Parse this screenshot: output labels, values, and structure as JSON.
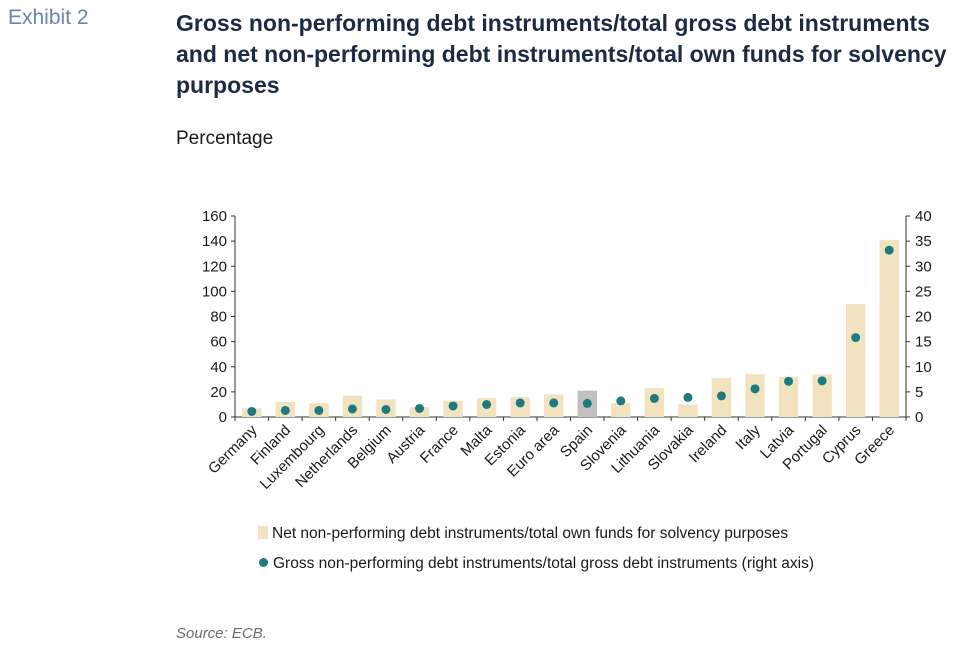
{
  "exhibit_label": "Exhibit 2",
  "title": "Gross non-performing debt instruments/total gross debt instruments and net non-performing debt instruments/total own funds for solvency purposes",
  "unit_label": "Percentage",
  "source": "Source: ECB.",
  "colors": {
    "bar": "#f2e3c0",
    "bar_highlight": "#c0c0c0",
    "dot": "#1f7a7e",
    "title": "#1c2a44",
    "exhibit": "#6a84b0"
  },
  "chart_data": {
    "type": "bar",
    "categories": [
      "Germany",
      "Finland",
      "Luxembourg",
      "Netherlands",
      "Belgium",
      "Austria",
      "France",
      "Malta",
      "Estonia",
      "Euro area",
      "Spain",
      "Slovenia",
      "Lithuania",
      "Slovakia",
      "Ireland",
      "Italy",
      "Latvia",
      "Portugal",
      "Cyprus",
      "Greece"
    ],
    "highlight_category": "Spain",
    "series": [
      {
        "name": "Net non-performing debt instruments/total own funds for solvency purposes",
        "kind": "bar",
        "axis": "left",
        "values": [
          7,
          12,
          11,
          17,
          14,
          8,
          13,
          15,
          16,
          18,
          21,
          11,
          23,
          10,
          31,
          34,
          32,
          34,
          90,
          141
        ]
      },
      {
        "name": "Gross non-performing debt instruments/total gross debt instruments (right axis)",
        "kind": "scatter",
        "axis": "right",
        "values": [
          1.1,
          1.3,
          1.3,
          1.6,
          1.5,
          1.7,
          2.2,
          2.5,
          2.8,
          2.8,
          2.7,
          3.2,
          3.7,
          3.9,
          4.2,
          5.6,
          7.1,
          7.2,
          15.8,
          33.2
        ]
      }
    ],
    "left_axis": {
      "ylim": [
        0,
        160
      ],
      "ticks": [
        "0",
        "20",
        "40",
        "60",
        "80",
        "100",
        "120",
        "140",
        "160"
      ]
    },
    "right_axis": {
      "ylim": [
        0,
        40
      ],
      "ticks": [
        "0",
        "5",
        "10",
        "15",
        "20",
        "25",
        "30",
        "35",
        "40"
      ]
    },
    "legend_placement": "bottom",
    "grid": false
  }
}
